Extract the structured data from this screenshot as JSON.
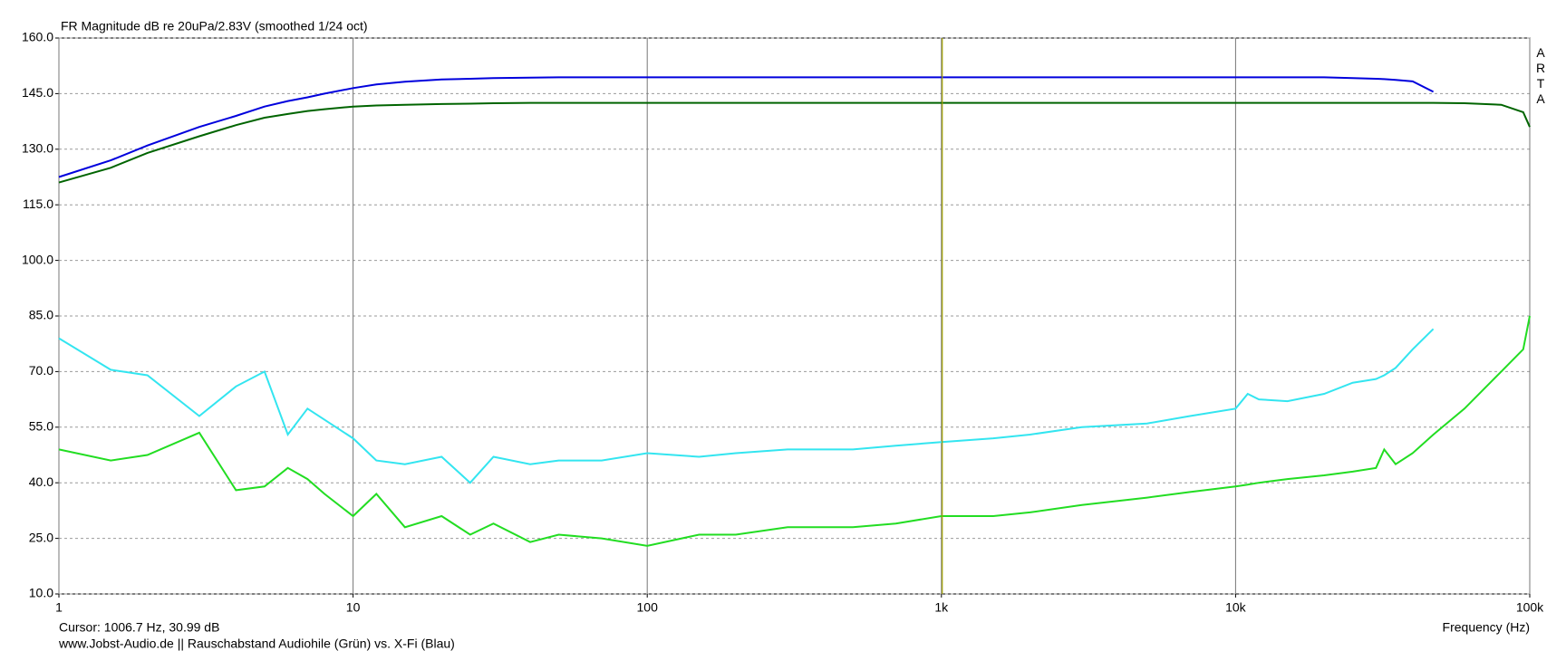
{
  "chart_data": {
    "type": "line",
    "title": "FR Magnitude dB re 20uPa/2.83V (smoothed 1/24 oct)",
    "xlabel": "Frequency (Hz)",
    "cursor_label": "Cursor: 1006.7 Hz, 30.99 dB",
    "cursor_x": 1006.7,
    "footer": "www.Jobst-Audio.de  ||  Rauschabstand Audiohile (Grün) vs. X-Fi (Blau)",
    "watermark": "ARTA",
    "xscale": "log",
    "grid": true,
    "xlim": [
      1,
      100000
    ],
    "ylim": [
      10,
      160
    ],
    "xticks": [
      1,
      10,
      100,
      {
        "value": 1000,
        "label": "1k"
      },
      {
        "value": 10000,
        "label": "10k"
      },
      {
        "value": 100000,
        "label": "100k"
      }
    ],
    "yticks": [
      {
        "value": 10,
        "label": "10.0"
      },
      {
        "value": 25,
        "label": "25.0"
      },
      {
        "value": 40,
        "label": "40.0"
      },
      {
        "value": 55,
        "label": "55.0"
      },
      {
        "value": 70,
        "label": "70.0"
      },
      {
        "value": 85,
        "label": "85.0"
      },
      {
        "value": 100,
        "label": "100.0"
      },
      {
        "value": 115,
        "label": "115.0"
      },
      {
        "value": 130,
        "label": "130.0"
      },
      {
        "value": 145,
        "label": "145.0"
      },
      {
        "value": 160,
        "label": "160.0"
      }
    ],
    "x": [
      1,
      1.5,
      2,
      3,
      4,
      5,
      6,
      7,
      8,
      10,
      12,
      15,
      20,
      25,
      30,
      40,
      50,
      70,
      100,
      150,
      200,
      300,
      500,
      700,
      1000,
      1500,
      2000,
      3000,
      5000,
      7000,
      10000,
      11000,
      12000,
      15000,
      20000,
      25000,
      30000,
      32000,
      35000,
      40000,
      47000,
      60000,
      80000,
      95000,
      100000
    ],
    "series": [
      {
        "color": "#0000dd",
        "values": [
          122.5,
          127,
          131,
          136,
          139,
          141.5,
          143,
          144,
          145,
          146.5,
          147.5,
          148.2,
          148.8,
          149,
          149.2,
          149.3,
          149.4,
          149.4,
          149.4,
          149.4,
          149.4,
          149.4,
          149.4,
          149.4,
          149.4,
          149.4,
          149.4,
          149.4,
          149.4,
          149.4,
          149.4,
          149.4,
          149.4,
          149.4,
          149.4,
          149.2,
          149,
          148.9,
          148.7,
          148.3,
          145.5,
          null,
          null,
          null,
          null
        ]
      },
      {
        "color": "#006400",
        "values": [
          121,
          125,
          129,
          133.5,
          136.5,
          138.5,
          139.5,
          140.3,
          140.8,
          141.5,
          141.8,
          142,
          142.2,
          142.3,
          142.4,
          142.5,
          142.5,
          142.5,
          142.5,
          142.5,
          142.5,
          142.5,
          142.5,
          142.5,
          142.5,
          142.5,
          142.5,
          142.5,
          142.5,
          142.5,
          142.5,
          142.5,
          142.5,
          142.5,
          142.5,
          142.5,
          142.5,
          142.5,
          142.5,
          142.5,
          142.5,
          142.4,
          142,
          140,
          136
        ]
      },
      {
        "color": "#33e5f0",
        "values": [
          79,
          70.5,
          69,
          58,
          66,
          70,
          53,
          60,
          57,
          52,
          46,
          45,
          47,
          40,
          47,
          45,
          46,
          46,
          48,
          47,
          48,
          49,
          49,
          50,
          51,
          52,
          53,
          55,
          56,
          58,
          60,
          64,
          62.5,
          62,
          64,
          67,
          68,
          69,
          71,
          76,
          81.5,
          null,
          null,
          null,
          null
        ]
      },
      {
        "color": "#22dd22",
        "values": [
          49,
          46,
          47.5,
          53.5,
          38,
          39,
          44,
          41,
          37,
          31,
          37,
          28,
          31,
          26,
          29,
          24,
          26,
          25,
          23,
          26,
          26,
          28,
          28,
          29,
          31,
          31,
          32,
          34,
          36,
          37.5,
          39,
          39.5,
          40,
          41,
          42,
          43,
          44,
          49,
          45,
          48,
          53,
          60,
          70,
          76,
          85
        ]
      }
    ]
  }
}
